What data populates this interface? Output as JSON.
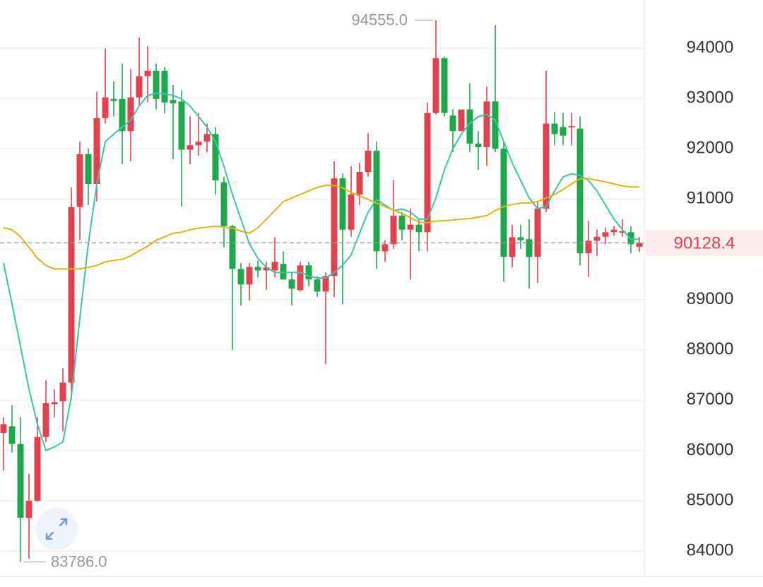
{
  "chart_data": {
    "type": "candlestick",
    "up_color": "#e0434f",
    "down_color": "#1fa84b",
    "ylim": [
      83286,
      94956
    ],
    "yticks": [
      84000,
      85000,
      86000,
      87000,
      88000,
      89000,
      90000,
      91000,
      92000,
      93000,
      94000
    ],
    "grid": true,
    "open": [
      86350,
      86480,
      86130,
      84660,
      85000,
      86270,
      86920,
      86980,
      87350,
      90840,
      91890,
      91300,
      92610,
      92990,
      92990,
      92350,
      93020,
      93440,
      93550,
      93550,
      92970,
      92940,
      91980,
      92070,
      92140,
      92290,
      91330,
      90460,
      89610,
      89300,
      89650,
      89580,
      89580,
      89710,
      89400,
      89190,
      89680,
      89400,
      89160,
      89470,
      91410,
      90390,
      91090,
      91540,
      91960,
      89960,
      90100,
      90670,
      90390,
      90490,
      90340,
      92710,
      93800,
      92660,
      92350,
      92780,
      92100,
      92030,
      92940,
      92000,
      89850,
      90240,
      90200,
      89850,
      90810,
      92500,
      92430,
      92430,
      92400,
      89920,
      90170,
      90250,
      90340,
      90330,
      90340,
      90050
    ],
    "high": [
      86660,
      86900,
      86660,
      85540,
      86660,
      87390,
      87220,
      87640,
      91230,
      92140,
      92000,
      93130,
      93990,
      93340,
      93690,
      93580,
      94210,
      94040,
      93690,
      93620,
      93270,
      93160,
      92640,
      92710,
      92500,
      92430,
      91440,
      90490,
      89730,
      89730,
      89780,
      89750,
      90240,
      89960,
      89540,
      89750,
      89750,
      89470,
      89540,
      91750,
      91510,
      91650,
      91720,
      92310,
      92140,
      90180,
      91370,
      90740,
      90810,
      90600,
      92920,
      94555,
      93830,
      92780,
      92780,
      93300,
      92350,
      93230,
      94460,
      92140,
      90490,
      90490,
      90600,
      90950,
      93550,
      92730,
      92710,
      92710,
      92640,
      90570,
      90390,
      90430,
      90460,
      90600,
      90460,
      90250
    ],
    "low": [
      85600,
      85960,
      83786,
      83850,
      84980,
      86170,
      86660,
      86380,
      87010,
      90180,
      90880,
      90950,
      92500,
      92640,
      91690,
      91750,
      92850,
      92920,
      92780,
      92700,
      91790,
      90850,
      91690,
      91860,
      91930,
      91090,
      90040,
      88000,
      88880,
      88980,
      89440,
      89190,
      89440,
      89400,
      88880,
      89160,
      89260,
      89050,
      87720,
      89050,
      88910,
      90250,
      90880,
      91440,
      89610,
      89750,
      90010,
      90180,
      89400,
      89960,
      89960,
      92680,
      92640,
      91930,
      92350,
      91930,
      91580,
      91650,
      91930,
      89360,
      89640,
      90010,
      89220,
      89330,
      90740,
      92070,
      92070,
      92070,
      89680,
      89450,
      89870,
      90100,
      90270,
      90250,
      89920,
      89950
    ],
    "close": [
      86520,
      86130,
      84660,
      85000,
      86270,
      86940,
      86960,
      87350,
      90840,
      91890,
      91300,
      92610,
      93020,
      92950,
      92350,
      93020,
      93440,
      93550,
      92990,
      92920,
      92900,
      91980,
      92070,
      92140,
      92290,
      91370,
      90460,
      89610,
      89300,
      89650,
      89580,
      89640,
      89750,
      89400,
      89220,
      89680,
      89400,
      89160,
      89470,
      91410,
      90390,
      91090,
      91540,
      91960,
      89960,
      90100,
      90670,
      90390,
      90490,
      90340,
      92710,
      93800,
      92710,
      92350,
      92780,
      92100,
      92030,
      92940,
      92000,
      89850,
      90240,
      90180,
      89850,
      90810,
      92500,
      92290,
      92260,
      92450,
      89920,
      90170,
      90250,
      90340,
      90390,
      90360,
      90100,
      90128.4
    ],
    "lines": [
      {
        "color": "#3cc4a4",
        "values": [
          89730,
          88910,
          88070,
          87220,
          86520,
          86000,
          86070,
          86170,
          87080,
          88630,
          90110,
          91300,
          92140,
          92290,
          92430,
          92570,
          92850,
          93060,
          93100,
          93090,
          93060,
          92990,
          92850,
          92640,
          92430,
          92140,
          91650,
          91090,
          90600,
          90110,
          89820,
          89640,
          89540,
          89540,
          89540,
          89540,
          89470,
          89430,
          89430,
          89540,
          89680,
          89890,
          90320,
          90740,
          90990,
          90880,
          90770,
          90800,
          90740,
          90600,
          90600,
          91020,
          91580,
          92000,
          92290,
          92500,
          92640,
          92680,
          92570,
          92140,
          91720,
          91370,
          91020,
          90810,
          90850,
          91160,
          91440,
          91500,
          91470,
          91370,
          91160,
          90880,
          90600,
          90390,
          90200,
          90200
        ]
      },
      {
        "color": "#e8b00f",
        "values": [
          90430,
          90390,
          90250,
          90040,
          89820,
          89680,
          89610,
          89610,
          89610,
          89610,
          89640,
          89680,
          89750,
          89780,
          89800,
          89870,
          89970,
          90060,
          90180,
          90250,
          90320,
          90340,
          90390,
          90420,
          90440,
          90460,
          90440,
          90420,
          90360,
          90320,
          90430,
          90600,
          90770,
          90950,
          91020,
          91090,
          91160,
          91230,
          91270,
          91270,
          91220,
          91130,
          91060,
          90990,
          90920,
          90850,
          90780,
          90710,
          90630,
          90540,
          90530,
          90560,
          90570,
          90580,
          90600,
          90610,
          90640,
          90670,
          90770,
          90850,
          90890,
          90920,
          90920,
          90950,
          91020,
          91090,
          91190,
          91300,
          91400,
          91410,
          91370,
          91340,
          91300,
          91260,
          91240,
          91240
        ]
      }
    ],
    "max_marker": {
      "value": 94555,
      "label": "94555.0"
    },
    "min_marker": {
      "value": 83786,
      "label": "83786.0"
    },
    "last_price": 90128.4
  }
}
